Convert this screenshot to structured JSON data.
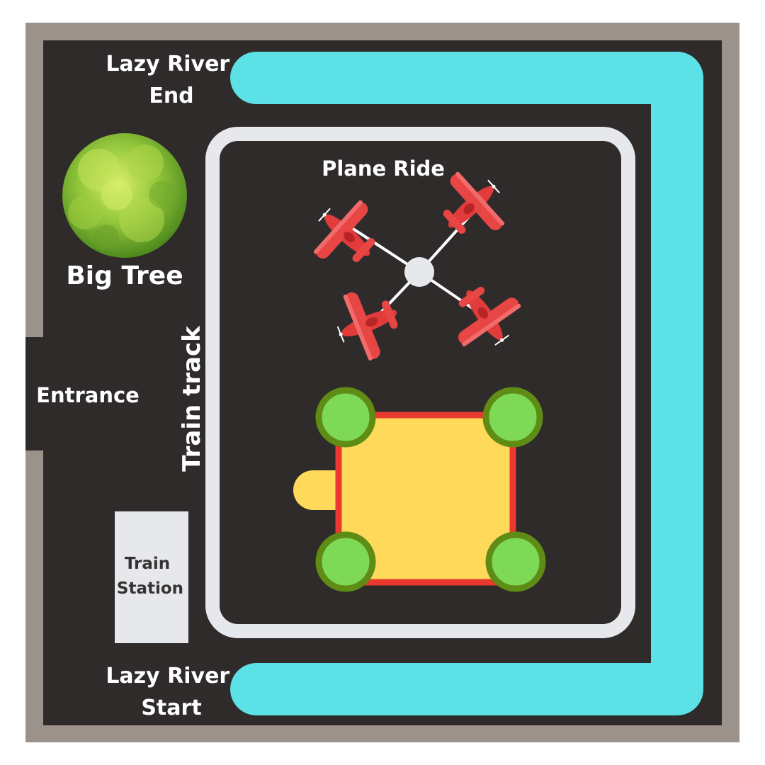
{
  "labels": {
    "lazy_river_end": [
      "Lazy River",
      "End"
    ],
    "lazy_river_start": [
      "Lazy River",
      "Start"
    ],
    "big_tree": "Big Tree",
    "entrance": "Entrance",
    "train_track": "Train track",
    "plane_ride": "Plane Ride",
    "train_station": [
      "Train",
      "Station"
    ]
  },
  "colors": {
    "border": "#9a928b",
    "ground": "#2f2b2b",
    "river": "#5ce1e6",
    "track": "#e6e8ec",
    "station": "#e6e8ec",
    "plane": "#e23b3b",
    "playground": "#ffd95a",
    "playground_edge": "#e83a2e",
    "post": "#7ed957",
    "post_edge": "#5f8c14",
    "tree": "#8dc63f"
  },
  "icons": {
    "tree": "tree-icon",
    "plane": "biplane-icon",
    "hub": "ride-hub-icon",
    "post": "post-icon"
  }
}
